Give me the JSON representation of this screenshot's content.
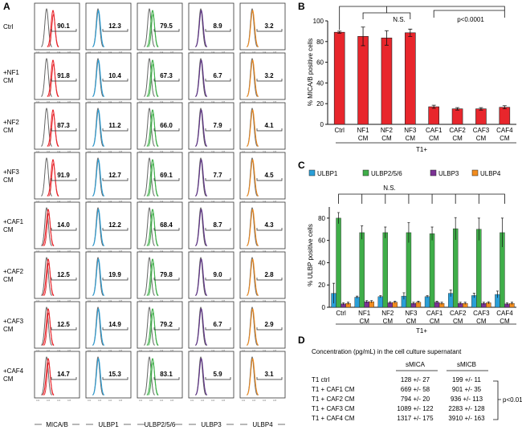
{
  "panel_labels": {
    "a": "A",
    "b": "B",
    "c": "C",
    "d": "D"
  },
  "flow": {
    "conditions": [
      [
        "Ctrl"
      ],
      [
        "+NF1",
        "CM"
      ],
      [
        "+NF2",
        "CM"
      ],
      [
        "+NF3",
        "CM"
      ],
      [
        "+CAF1",
        "CM"
      ],
      [
        "+CAF2",
        "CM"
      ],
      [
        "+CAF3",
        "CM"
      ],
      [
        "+CAF4",
        "CM"
      ]
    ],
    "markers": [
      "MICA/B",
      "ULBP1",
      "ULBP2/5/6",
      "ULBP3",
      "ULBP4"
    ],
    "colors": [
      "#e8262c",
      "#2a9fd8",
      "#3fae49",
      "#5b2d86",
      "#f28c1e"
    ],
    "values": [
      [
        "90.1",
        "12.3",
        "79.5",
        "8.9",
        "3.2"
      ],
      [
        "91.8",
        "10.4",
        "67.3",
        "6.7",
        "3.2"
      ],
      [
        "87.3",
        "11.2",
        "66.0",
        "7.9",
        "4.1"
      ],
      [
        "91.9",
        "12.7",
        "69.1",
        "7.7",
        "4.5"
      ],
      [
        "14.0",
        "12.2",
        "68.4",
        "8.7",
        "4.3"
      ],
      [
        "12.5",
        "19.9",
        "79.8",
        "9.0",
        "2.8"
      ],
      [
        "12.5",
        "14.9",
        "79.2",
        "6.7",
        "2.9"
      ],
      [
        "14.7",
        "15.3",
        "83.1",
        "5.9",
        "3.1"
      ]
    ]
  },
  "chart_data": [
    {
      "type": "bar",
      "panel": "B",
      "categories": [
        [
          "Ctrl"
        ],
        [
          "NF1",
          "CM"
        ],
        [
          "NF2",
          "CM"
        ],
        [
          "NF3",
          "CM"
        ],
        [
          "CAF1",
          "CM"
        ],
        [
          "CAF2",
          "CM"
        ],
        [
          "CAF3",
          "CM"
        ],
        [
          "CAF4",
          "CM"
        ]
      ],
      "values": [
        89,
        85,
        83.5,
        88.5,
        17,
        15,
        15,
        16.5
      ],
      "errors": [
        1,
        9,
        7,
        3.5,
        1.5,
        1.2,
        1.2,
        1.5
      ],
      "ylabel": "% MICA/B positive cells",
      "xlabel": "T1+",
      "ylim": [
        0,
        100
      ],
      "yticks": [
        "0",
        "20",
        "40",
        "60",
        "80",
        "100"
      ],
      "color": "#e8262c",
      "annotations": [
        "N.S.",
        "p<0.0001"
      ]
    },
    {
      "type": "bar",
      "panel": "C",
      "categories": [
        [
          "Ctrl"
        ],
        [
          "NF1",
          "CM"
        ],
        [
          "NF2",
          "CM"
        ],
        [
          "NF3",
          "CM"
        ],
        [
          "CAF1",
          "CM"
        ],
        [
          "CAF2",
          "CM"
        ],
        [
          "CAF3",
          "CM"
        ],
        [
          "CAF4",
          "CM"
        ]
      ],
      "series": [
        {
          "name": "ULBP1",
          "color": "#2a9fd8",
          "values": [
            12.5,
            9,
            9.5,
            10,
            9.5,
            12.5,
            10.5,
            11.5
          ],
          "errors": [
            9,
            1,
            1,
            3,
            1,
            3,
            2,
            3
          ]
        },
        {
          "name": "ULBP2/5/6",
          "color": "#3fae49",
          "values": [
            80,
            67,
            67,
            67,
            66,
            70.5,
            70,
            67
          ],
          "errors": [
            5,
            6,
            5,
            9,
            6,
            10,
            10,
            13
          ]
        },
        {
          "name": "ULBP3",
          "color": "#7b3294",
          "values": [
            3,
            5,
            4,
            3.5,
            4.5,
            3.5,
            3.5,
            3
          ],
          "errors": [
            1,
            1,
            1,
            1,
            1,
            1,
            1,
            1
          ]
        },
        {
          "name": "ULBP4",
          "color": "#f28c1e",
          "values": [
            3.5,
            5,
            4.5,
            4.5,
            3.5,
            3.5,
            4,
            3.5
          ],
          "errors": [
            1,
            1,
            1,
            1,
            1,
            1,
            1,
            1
          ]
        }
      ],
      "ylabel": "% ULBP  positive cells",
      "xlabel": "T1+",
      "ylim": [
        0,
        90
      ],
      "yticks": [
        "0",
        "20",
        "40",
        "60",
        "80"
      ],
      "annotations": [
        "N.S."
      ]
    },
    {
      "type": "table",
      "panel": "D",
      "title": "Concentration (pg/mL) in the cell culture supernatant",
      "columns": [
        "",
        "sMICA",
        "sMICB"
      ],
      "rows": [
        [
          "T1 ctrl",
          "128 +/- 27",
          "199 +/- 11"
        ],
        [
          "T1 + CAF1 CM",
          "669 +/- 58",
          "901 +/- 35"
        ],
        [
          "T1 + CAF2 CM",
          "794 +/- 20",
          "936 +/- 113"
        ],
        [
          "T1 + CAF3 CM",
          "1089 +/- 122",
          "2283 +/- 128"
        ],
        [
          "T1 + CAF4 CM",
          "1317 +/- 175",
          "3910 +/- 163"
        ]
      ],
      "annotation": "p<0.01"
    }
  ]
}
